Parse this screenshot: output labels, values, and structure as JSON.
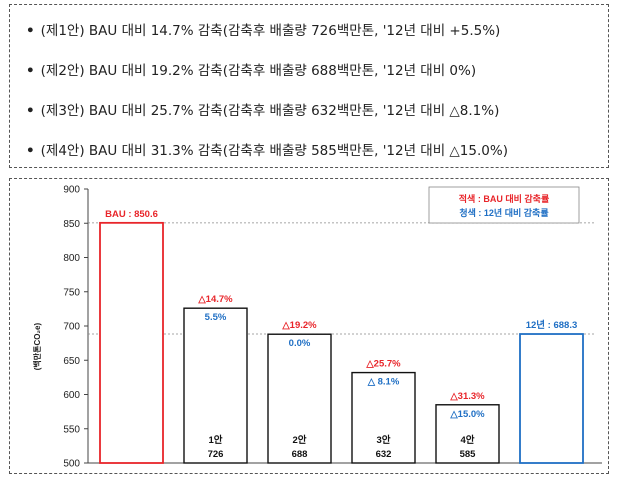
{
  "bullets": [
    {
      "marker": "•",
      "text": "(제1안) BAU 대비 14.7% 감축(감축후 배출량 726백만톤, '12년 대비 +5.5%)"
    },
    {
      "marker": "•",
      "text": "(제2안) BAU 대비 19.2% 감축(감축후 배출량 688백만톤, '12년 대비 0%)"
    },
    {
      "marker": "•",
      "text": "(제3안) BAU 대비 25.7% 감축(감축후 배출량 632백만톤, '12년 대비 △8.1%)"
    },
    {
      "marker": "•",
      "text": "(제4안) BAU 대비 31.3% 감축(감축후 배출량 585백만톤, '12년 대비 △15.0%)"
    }
  ],
  "legend": {
    "red_label": "적색 : BAU 대비 감축률",
    "blue_label": "청색 : 12년 대비 감축률"
  },
  "colors": {
    "red": "#e8252a",
    "blue": "#1f6fc4",
    "black": "#111111"
  },
  "chart_data": {
    "type": "bar",
    "ylabel": "(백만톤CO₂e)",
    "ylim": [
      500,
      900
    ],
    "yticks": [
      500,
      550,
      600,
      650,
      700,
      750,
      800,
      850,
      900
    ],
    "reference_lines": [
      850.6,
      688.3
    ],
    "bars": [
      {
        "key": "bau",
        "value": 850.6,
        "label": "BAU : 850.6",
        "style": "red-outline",
        "top_label": "",
        "mid_label": "",
        "name": "",
        "value_text": ""
      },
      {
        "key": "opt1",
        "value": 726,
        "label": "",
        "style": "black",
        "top_label": "△14.7%",
        "mid_label": "5.5%",
        "name": "1안",
        "value_text": "726"
      },
      {
        "key": "opt2",
        "value": 688,
        "label": "",
        "style": "black",
        "top_label": "△19.2%",
        "mid_label": "0.0%",
        "name": "2안",
        "value_text": "688"
      },
      {
        "key": "opt3",
        "value": 632,
        "label": "",
        "style": "black",
        "top_label": "△25.7%",
        "mid_label": "△ 8.1%",
        "name": "3안",
        "value_text": "632"
      },
      {
        "key": "opt4",
        "value": 585,
        "label": "",
        "style": "black",
        "top_label": "△31.3%",
        "mid_label": "△15.0%",
        "name": "4안",
        "value_text": "585"
      },
      {
        "key": "y2012",
        "value": 688.3,
        "label": "12년 : 688.3",
        "style": "blue-outline",
        "top_label": "",
        "mid_label": "",
        "name": "",
        "value_text": ""
      }
    ]
  }
}
